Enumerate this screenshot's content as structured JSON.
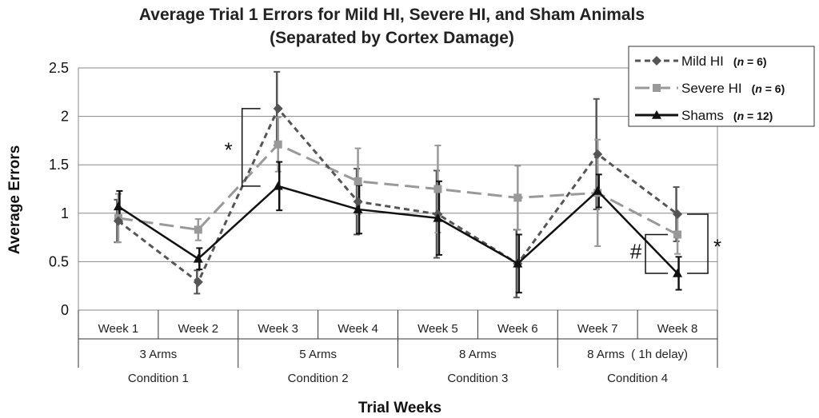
{
  "chart_data": {
    "type": "line",
    "title": [
      "Average Trial 1 Errors for Mild HI, Severe HI, and Sham Animals",
      "(Separated by Cortex Damage)"
    ],
    "xlabel": "Trial Weeks",
    "ylabel": "Average Errors",
    "ylim": [
      0,
      2.5
    ],
    "yticks": [
      "0",
      "0.5",
      "1",
      "1.5",
      "2",
      "2.5"
    ],
    "categories": [
      "Week 1",
      "Week 2",
      "Week 3",
      "Week 4",
      "Week 5",
      "Week 6",
      "Week 7",
      "Week 8"
    ],
    "groups": [
      {
        "line1": "3 Arms",
        "line2": "Condition 1"
      },
      {
        "line1": "5 Arms",
        "line2": "Condition 2"
      },
      {
        "line1": "8 Arms",
        "line2": "Condition 3"
      },
      {
        "line1": "8 Arms  ( 1h delay)",
        "line2": "Condition 4"
      }
    ],
    "series": [
      {
        "name": "Mild HI",
        "n_label": "n",
        "n_value": " = 6)",
        "color": "#555555",
        "dash": "dashed",
        "marker": "diamond",
        "values": [
          0.92,
          0.29,
          2.08,
          1.12,
          0.99,
          0.48,
          1.61,
          0.99
        ],
        "err": [
          0.22,
          0.12,
          0.38,
          0.34,
          0.45,
          0.35,
          0.57,
          0.28
        ]
      },
      {
        "name": "Severe HI",
        "n_label": "n",
        "n_value": " = 6)",
        "color": "#999999",
        "dash": "longdash",
        "marker": "square",
        "values": [
          0.95,
          0.83,
          1.71,
          1.33,
          1.25,
          1.16,
          1.21,
          0.78
        ],
        "err": [
          0.25,
          0.11,
          0.28,
          0.34,
          0.45,
          0.33,
          0.55,
          0.2
        ]
      },
      {
        "name": "Shams",
        "n_label": "n",
        "n_value": " = 12)",
        "color": "#111111",
        "dash": "solid",
        "marker": "triangle",
        "values": [
          1.07,
          0.53,
          1.28,
          1.04,
          0.95,
          0.48,
          1.23,
          0.38
        ],
        "err": [
          0.16,
          0.11,
          0.25,
          0.25,
          0.38,
          0.3,
          0.17,
          0.17
        ]
      }
    ],
    "annotations": [
      {
        "symbol": "*",
        "bracket": "week3"
      },
      {
        "symbol": "#",
        "bracket": "week8-left"
      },
      {
        "symbol": "*",
        "bracket": "week8-right"
      }
    ]
  }
}
